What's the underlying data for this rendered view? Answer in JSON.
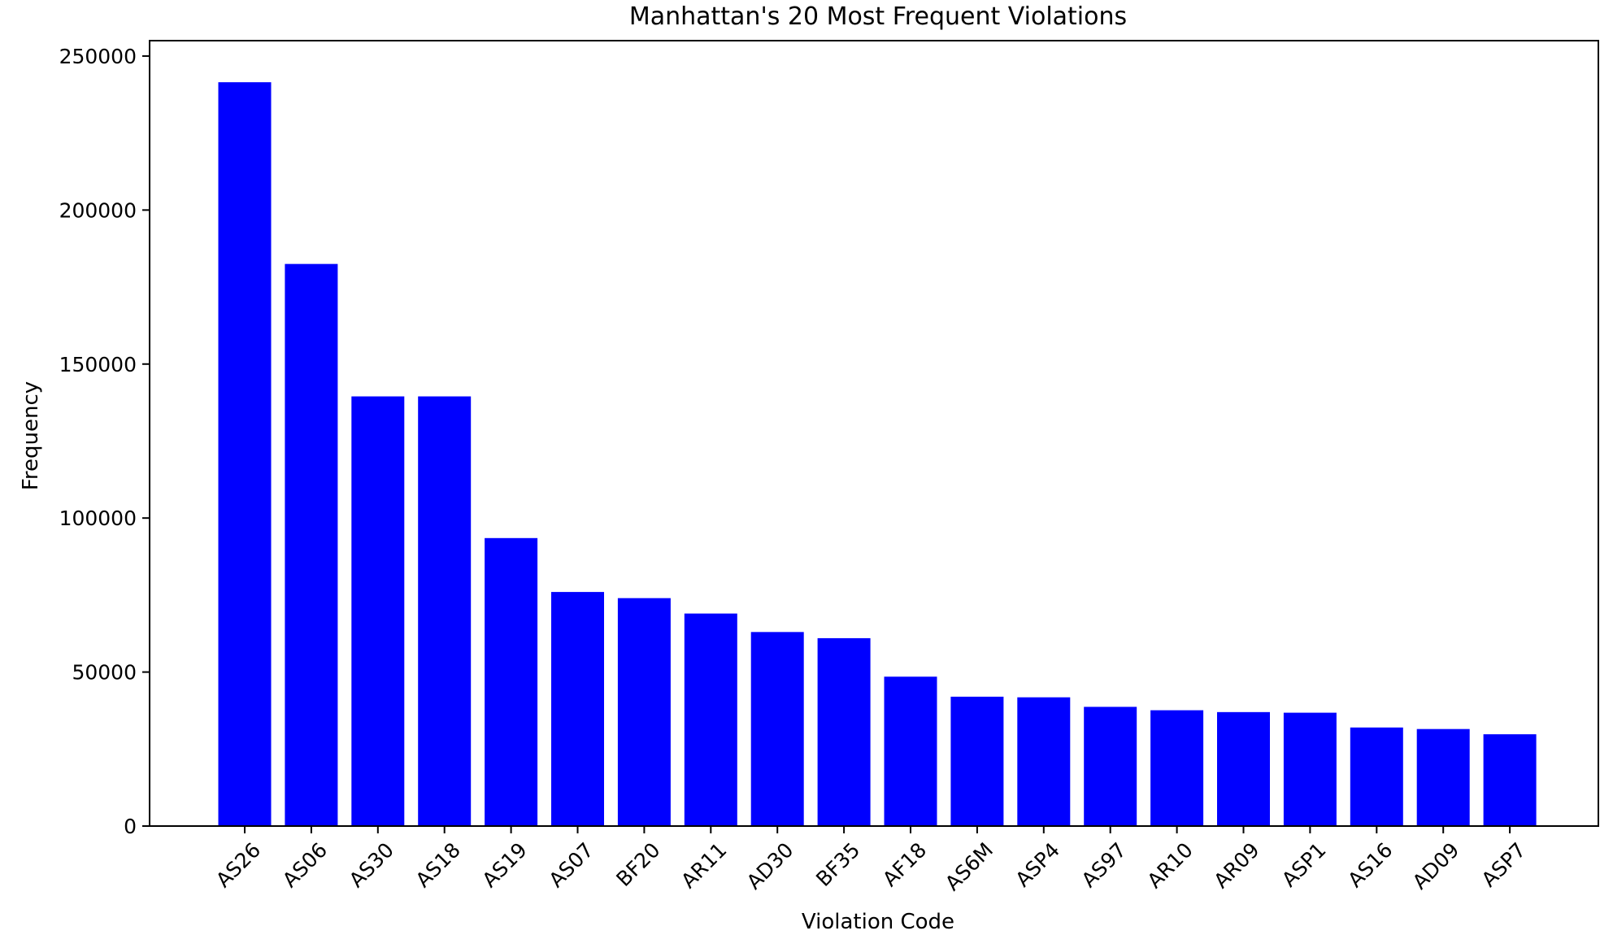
{
  "chart_data": {
    "type": "bar",
    "title": "Manhattan's 20 Most Frequent Violations",
    "xlabel": "Violation Code",
    "ylabel": "Frequency",
    "categories": [
      "AS26",
      "AS06",
      "AS30",
      "AS18",
      "AS19",
      "AS07",
      "BF20",
      "AR11",
      "AD30",
      "BF35",
      "AF18",
      "AS6M",
      "ASP4",
      "AS97",
      "AR10",
      "AR09",
      "ASP1",
      "AS16",
      "AD09",
      "ASP7"
    ],
    "values": [
      241500,
      182500,
      139500,
      139500,
      93500,
      76000,
      74000,
      69000,
      63000,
      61000,
      48500,
      42000,
      41800,
      38700,
      37600,
      37000,
      36800,
      32000,
      31500,
      29800
    ],
    "ylim": [
      0,
      255000
    ],
    "yticks": [
      0,
      50000,
      100000,
      150000,
      200000,
      250000
    ],
    "ytick_labels": [
      "0",
      "50000",
      "100000",
      "150000",
      "200000",
      "250000"
    ],
    "bar_color": "#0000ff",
    "grid": false,
    "legend": "none"
  }
}
